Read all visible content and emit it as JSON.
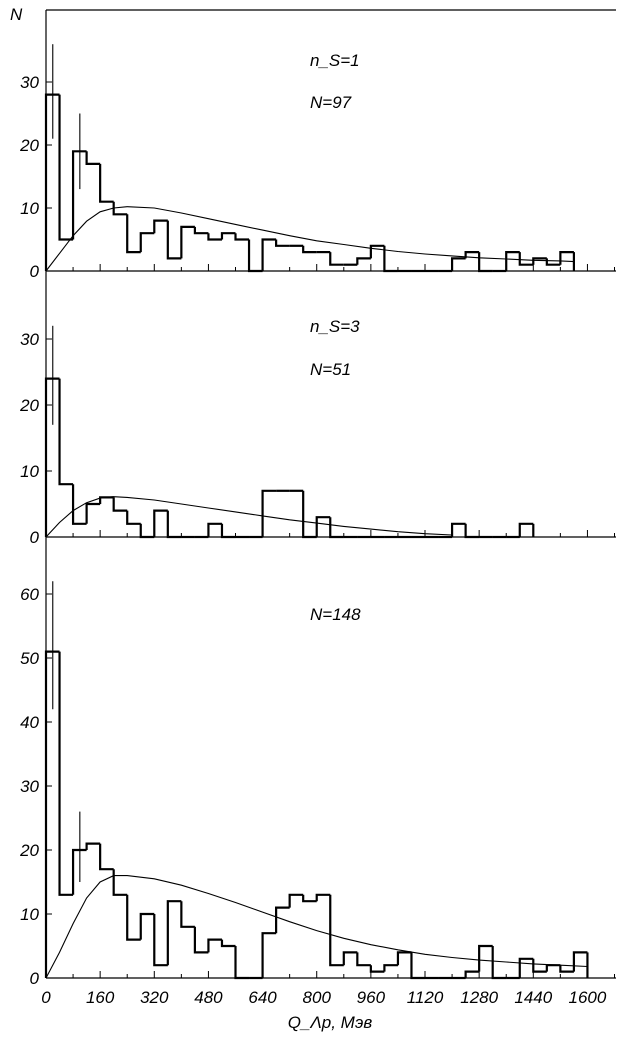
{
  "chart_data": [
    {
      "type": "bar",
      "ylabel": "N",
      "xlim": [
        0,
        1760
      ],
      "ylim": [
        0,
        40
      ],
      "yticks": [
        0,
        10,
        20,
        30
      ],
      "annotations": [
        "n_S=1",
        "N=97"
      ],
      "hist": {
        "bin_width": 40,
        "bins": [
          [
            0,
            28
          ],
          [
            40,
            5
          ],
          [
            80,
            19
          ],
          [
            120,
            17
          ],
          [
            160,
            11
          ],
          [
            200,
            9
          ],
          [
            240,
            3
          ],
          [
            280,
            6
          ],
          [
            320,
            8
          ],
          [
            360,
            2
          ],
          [
            400,
            7
          ],
          [
            440,
            6
          ],
          [
            480,
            5
          ],
          [
            520,
            6
          ],
          [
            560,
            5
          ],
          [
            600,
            0
          ],
          [
            640,
            5
          ],
          [
            680,
            4
          ],
          [
            720,
            4
          ],
          [
            760,
            3
          ],
          [
            800,
            3
          ],
          [
            840,
            1
          ],
          [
            880,
            1
          ],
          [
            920,
            2
          ],
          [
            960,
            4
          ],
          [
            1000,
            0
          ],
          [
            1040,
            0
          ],
          [
            1080,
            0
          ],
          [
            1120,
            0
          ],
          [
            1160,
            0
          ],
          [
            1200,
            2
          ],
          [
            1240,
            3
          ],
          [
            1280,
            0
          ],
          [
            1320,
            0
          ],
          [
            1360,
            3
          ],
          [
            1400,
            1
          ],
          [
            1440,
            2
          ],
          [
            1480,
            1
          ],
          [
            1520,
            3
          ]
        ]
      },
      "error_bars": [
        {
          "x": 20,
          "low": 21,
          "high": 36
        },
        {
          "x": 100,
          "low": 13,
          "high": 25
        }
      ],
      "fit_curve": [
        [
          0,
          0
        ],
        [
          40,
          2.8
        ],
        [
          80,
          5.6
        ],
        [
          120,
          7.9
        ],
        [
          160,
          9.4
        ],
        [
          200,
          10.0
        ],
        [
          240,
          10.2
        ],
        [
          320,
          10.0
        ],
        [
          400,
          9.2
        ],
        [
          480,
          8.3
        ],
        [
          560,
          7.4
        ],
        [
          640,
          6.5
        ],
        [
          720,
          5.6
        ],
        [
          800,
          4.8
        ],
        [
          880,
          4.2
        ],
        [
          960,
          3.6
        ],
        [
          1040,
          3.1
        ],
        [
          1120,
          2.7
        ],
        [
          1200,
          2.4
        ],
        [
          1280,
          2.1
        ],
        [
          1360,
          1.9
        ],
        [
          1440,
          1.7
        ],
        [
          1520,
          1.6
        ],
        [
          1560,
          1.5
        ]
      ]
    },
    {
      "type": "bar",
      "xlim": [
        0,
        1760
      ],
      "ylim": [
        0,
        35
      ],
      "yticks": [
        0,
        10,
        20,
        30
      ],
      "annotations": [
        "n_S=3",
        "N=51"
      ],
      "hist": {
        "bin_width": 40,
        "bins": [
          [
            0,
            24
          ],
          [
            40,
            8
          ],
          [
            80,
            2
          ],
          [
            120,
            5
          ],
          [
            160,
            6
          ],
          [
            200,
            4
          ],
          [
            240,
            2
          ],
          [
            280,
            0
          ],
          [
            320,
            4
          ],
          [
            360,
            0
          ],
          [
            400,
            0
          ],
          [
            440,
            0
          ],
          [
            480,
            2
          ],
          [
            520,
            0
          ],
          [
            560,
            0
          ],
          [
            600,
            0
          ],
          [
            640,
            7
          ],
          [
            680,
            7
          ],
          [
            720,
            7
          ],
          [
            760,
            0
          ],
          [
            800,
            3
          ],
          [
            840,
            0
          ],
          [
            880,
            0
          ],
          [
            920,
            0
          ],
          [
            960,
            0
          ],
          [
            1000,
            0
          ],
          [
            1040,
            0
          ],
          [
            1080,
            0
          ],
          [
            1120,
            0
          ],
          [
            1160,
            0
          ],
          [
            1200,
            2
          ],
          [
            1240,
            0
          ],
          [
            1280,
            0
          ],
          [
            1320,
            0
          ],
          [
            1360,
            0
          ],
          [
            1400,
            2
          ]
        ]
      },
      "error_bars": [
        {
          "x": 20,
          "low": 17,
          "high": 32
        }
      ],
      "fit_curve": [
        [
          0,
          0
        ],
        [
          40,
          2.2
        ],
        [
          80,
          4.0
        ],
        [
          120,
          5.2
        ],
        [
          160,
          5.9
        ],
        [
          200,
          6.1
        ],
        [
          240,
          6.0
        ],
        [
          320,
          5.6
        ],
        [
          400,
          5.0
        ],
        [
          480,
          4.4
        ],
        [
          560,
          3.8
        ],
        [
          640,
          3.2
        ],
        [
          720,
          2.6
        ],
        [
          800,
          2.1
        ],
        [
          880,
          1.6
        ],
        [
          960,
          1.2
        ],
        [
          1040,
          0.8
        ],
        [
          1120,
          0.5
        ],
        [
          1200,
          0.3
        ]
      ]
    },
    {
      "type": "bar",
      "xlabel": "Q_Λp, Мэв",
      "xlim": [
        0,
        1760
      ],
      "ylim": [
        0,
        66
      ],
      "yticks": [
        0,
        10,
        20,
        30,
        40,
        50,
        60
      ],
      "xticks": [
        0,
        160,
        320,
        480,
        640,
        800,
        960,
        1120,
        1280,
        1440,
        1600
      ],
      "annotations": [
        "N=148"
      ],
      "hist": {
        "bin_width": 40,
        "bins": [
          [
            0,
            51
          ],
          [
            40,
            13
          ],
          [
            80,
            20
          ],
          [
            120,
            21
          ],
          [
            160,
            17
          ],
          [
            200,
            13
          ],
          [
            240,
            6
          ],
          [
            280,
            10
          ],
          [
            320,
            2
          ],
          [
            360,
            12
          ],
          [
            400,
            8
          ],
          [
            440,
            4
          ],
          [
            480,
            6
          ],
          [
            520,
            5
          ],
          [
            560,
            0
          ],
          [
            600,
            0
          ],
          [
            640,
            7
          ],
          [
            680,
            11
          ],
          [
            720,
            13
          ],
          [
            760,
            12
          ],
          [
            800,
            13
          ],
          [
            840,
            2
          ],
          [
            880,
            4
          ],
          [
            920,
            2
          ],
          [
            960,
            1
          ],
          [
            1000,
            2
          ],
          [
            1040,
            4
          ],
          [
            1080,
            0
          ],
          [
            1120,
            0
          ],
          [
            1160,
            0
          ],
          [
            1200,
            0
          ],
          [
            1240,
            1
          ],
          [
            1280,
            5
          ],
          [
            1320,
            0
          ],
          [
            1360,
            0
          ],
          [
            1400,
            3
          ],
          [
            1440,
            1
          ],
          [
            1480,
            2
          ],
          [
            1520,
            1
          ],
          [
            1560,
            4
          ]
        ]
      },
      "error_bars": [
        {
          "x": 20,
          "low": 42,
          "high": 62
        },
        {
          "x": 100,
          "low": 15,
          "high": 26
        }
      ],
      "fit_curve": [
        [
          0,
          0
        ],
        [
          40,
          4.0
        ],
        [
          80,
          8.5
        ],
        [
          120,
          12.5
        ],
        [
          160,
          15.0
        ],
        [
          200,
          16.0
        ],
        [
          240,
          16.0
        ],
        [
          320,
          15.5
        ],
        [
          400,
          14.5
        ],
        [
          480,
          13.2
        ],
        [
          560,
          11.8
        ],
        [
          640,
          10.3
        ],
        [
          720,
          8.8
        ],
        [
          800,
          7.4
        ],
        [
          880,
          6.2
        ],
        [
          960,
          5.2
        ],
        [
          1040,
          4.4
        ],
        [
          1120,
          3.7
        ],
        [
          1200,
          3.2
        ],
        [
          1280,
          2.8
        ],
        [
          1360,
          2.5
        ],
        [
          1440,
          2.2
        ],
        [
          1520,
          2.0
        ],
        [
          1600,
          1.8
        ]
      ]
    }
  ]
}
